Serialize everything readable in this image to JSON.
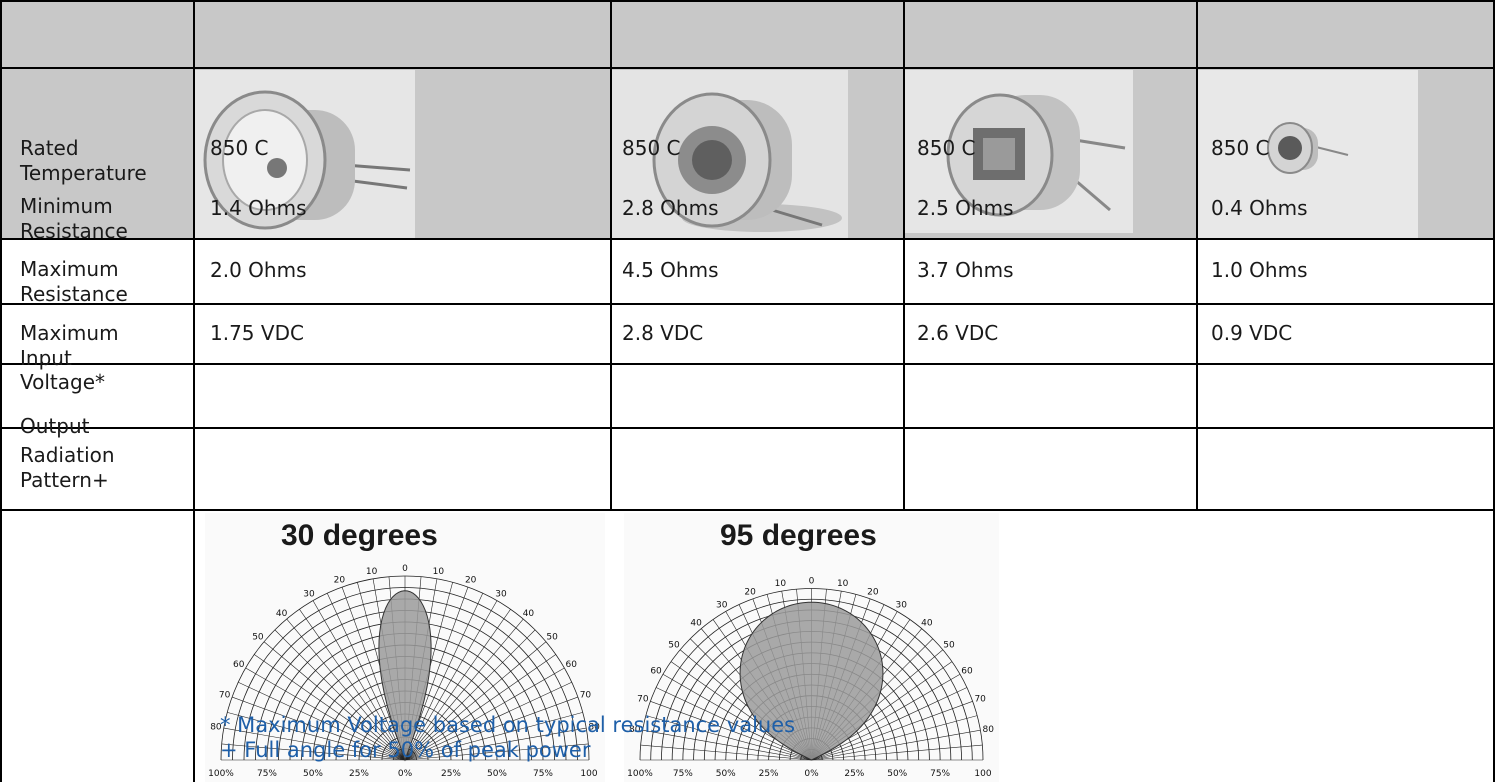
{
  "row_labels": {
    "rated_temperature": "Rated Temperature",
    "minimum_resistance": "Minimum Resistance",
    "maximum_resistance": "Maximum Resistance",
    "maximum_input_voltage": "Maximum Input Voltage*",
    "output": "Output",
    "radiation_pattern": "Radiation Pattern+"
  },
  "products": [
    {
      "rated_temperature": "850 C",
      "minimum_resistance": "1.4 Ohms",
      "maximum_resistance": "2.0 Ohms",
      "maximum_input_voltage": "1.75 VDC"
    },
    {
      "rated_temperature": "850 C",
      "minimum_resistance": "2.8 Ohms",
      "maximum_resistance": "4.5 Ohms",
      "maximum_input_voltage": "2.8 VDC"
    },
    {
      "rated_temperature": "850 C",
      "minimum_resistance": "2.5 Ohms",
      "maximum_resistance": "3.7 Ohms",
      "maximum_input_voltage": "2.6 VDC"
    },
    {
      "rated_temperature": "850 C",
      "minimum_resistance": "0.4 Ohms",
      "maximum_resistance": "1.0 Ohms",
      "maximum_input_voltage": "0.9 VDC"
    }
  ],
  "radiation_charts": [
    {
      "title": "30 degrees",
      "angle_labels": [
        "0",
        "10",
        "20",
        "30",
        "40",
        "50",
        "60",
        "70",
        "80"
      ],
      "percent_labels": [
        "100%",
        "75%",
        "50%",
        "25%",
        "0%",
        "25%",
        "50%",
        "75%",
        "100"
      ],
      "beam_full_angle_deg": 30
    },
    {
      "title": "95 degrees",
      "angle_labels": [
        "0",
        "10",
        "20",
        "30",
        "40",
        "50",
        "60",
        "70",
        "80"
      ],
      "percent_labels": [
        "100%",
        "75%",
        "50%",
        "25%",
        "0%",
        "25%",
        "50%",
        "75%",
        "100"
      ],
      "beam_full_angle_deg": 95
    }
  ],
  "footnotes": {
    "voltage": "* Maximum Voltage based on typical resistance values",
    "angle": "+ Full angle for 50% of peak power"
  },
  "colors": {
    "header_band": "#c8c8c8",
    "footnote": "#1e5fa8",
    "beam_fill": "#9a9a9a"
  }
}
